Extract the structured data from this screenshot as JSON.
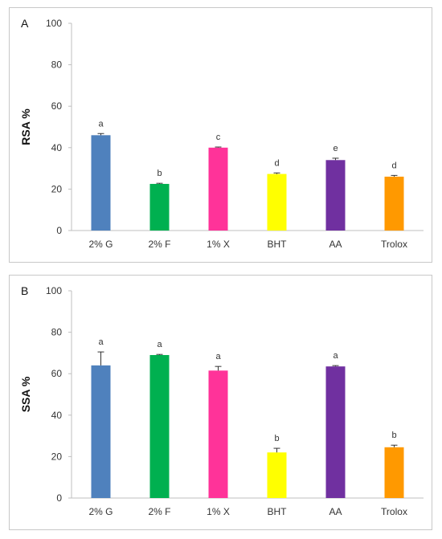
{
  "chart_data": [
    {
      "type": "bar",
      "panel_label": "A",
      "ylabel": "RSA %",
      "xlabel": "",
      "ylim": [
        0,
        100
      ],
      "yticks": [
        0,
        20,
        40,
        60,
        80,
        100
      ],
      "grid": false,
      "categories": [
        "2% G",
        "2% F",
        "1% X",
        "BHT",
        "AA",
        "Trolox"
      ],
      "values": [
        46,
        22.5,
        40,
        27.3,
        34,
        26
      ],
      "errors": [
        0.8,
        0.3,
        0.3,
        0.5,
        0.9,
        0.6
      ],
      "significance": [
        "a",
        "b",
        "c",
        "d",
        "e",
        "d"
      ],
      "colors": [
        "#4f81bd",
        "#00b050",
        "#ff3399",
        "#ffff00",
        "#7030a0",
        "#ff9900"
      ]
    },
    {
      "type": "bar",
      "panel_label": "B",
      "ylabel": "SSA %",
      "xlabel": "",
      "ylim": [
        0,
        100
      ],
      "yticks": [
        0,
        20,
        40,
        60,
        80,
        100
      ],
      "grid": false,
      "categories": [
        "2% G",
        "2% F",
        "1% X",
        "BHT",
        "AA",
        "Trolox"
      ],
      "values": [
        64,
        69,
        61.5,
        22,
        63.5,
        24.5
      ],
      "errors": [
        6.5,
        0.3,
        2.0,
        2.0,
        0.4,
        1.0
      ],
      "significance": [
        "a",
        "a",
        "a",
        "b",
        "a",
        "b"
      ],
      "colors": [
        "#4f81bd",
        "#00b050",
        "#ff3399",
        "#ffff00",
        "#7030a0",
        "#ff9900"
      ]
    }
  ]
}
